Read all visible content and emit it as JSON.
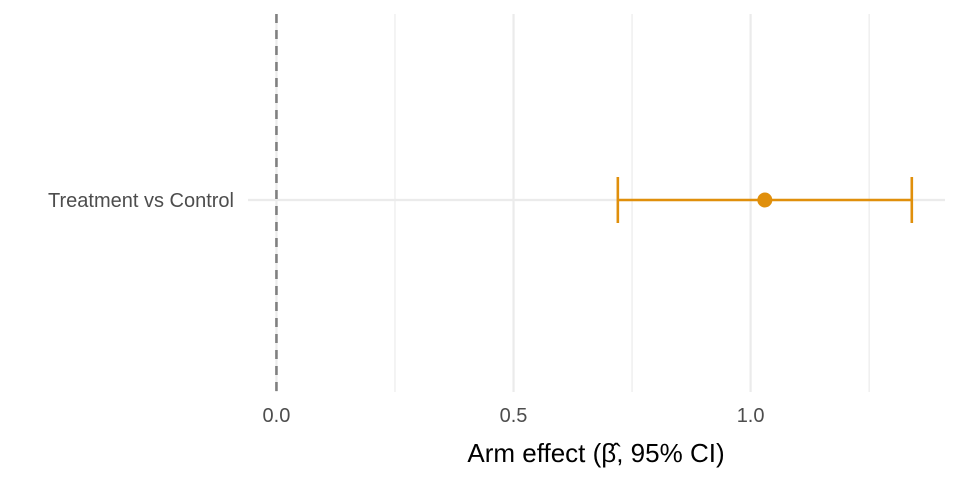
{
  "chart_data": {
    "type": "forest",
    "xlabel": "Arm effect (β̂, 95% CI)",
    "ylabel": "",
    "title": "",
    "categories": [
      "Treatment vs Control"
    ],
    "points": [
      {
        "label": "Treatment vs Control",
        "estimate": 1.03,
        "lower": 0.72,
        "upper": 1.34
      }
    ],
    "x_ticks": [
      {
        "value": 0.0,
        "label": "0.0"
      },
      {
        "value": 0.5,
        "label": "0.5"
      },
      {
        "value": 1.0,
        "label": "1.0"
      }
    ],
    "x_minor_grid": [
      0.25,
      0.75,
      1.25
    ],
    "xlim": [
      -0.06,
      1.41
    ],
    "reference_line": 0,
    "grid": true,
    "legend": "none",
    "colors": {
      "point": "#E08F0B",
      "reference_line": "#808080",
      "grid": "#ebebeb"
    }
  }
}
